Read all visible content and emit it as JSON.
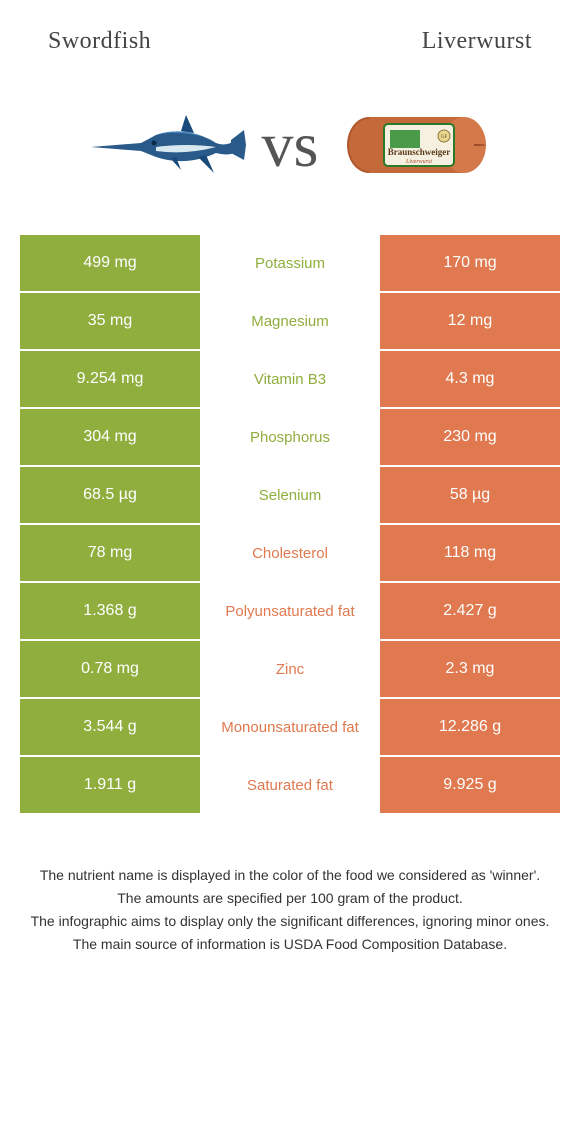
{
  "food_a": {
    "name": "Swordfish",
    "color": "#8fae3e"
  },
  "food_b": {
    "name": "Liverwurst",
    "color": "#e0794f"
  },
  "vs_label": "vs",
  "nutrients": [
    {
      "name": "Potassium",
      "a": "499 mg",
      "b": "170 mg",
      "winner": "a"
    },
    {
      "name": "Magnesium",
      "a": "35 mg",
      "b": "12 mg",
      "winner": "a"
    },
    {
      "name": "Vitamin B3",
      "a": "9.254 mg",
      "b": "4.3 mg",
      "winner": "a"
    },
    {
      "name": "Phosphorus",
      "a": "304 mg",
      "b": "230 mg",
      "winner": "a"
    },
    {
      "name": "Selenium",
      "a": "68.5 µg",
      "b": "58 µg",
      "winner": "a"
    },
    {
      "name": "Cholesterol",
      "a": "78 mg",
      "b": "118 mg",
      "winner": "b"
    },
    {
      "name": "Polyunsaturated fat",
      "a": "1.368 g",
      "b": "2.427 g",
      "winner": "b"
    },
    {
      "name": "Zinc",
      "a": "0.78 mg",
      "b": "2.3 mg",
      "winner": "b"
    },
    {
      "name": "Monounsaturated fat",
      "a": "3.544 g",
      "b": "12.286 g",
      "winner": "b"
    },
    {
      "name": "Saturated fat",
      "a": "1.911 g",
      "b": "9.925 g",
      "winner": "b"
    }
  ],
  "footnotes": [
    "The nutrient name is displayed in the color of the food we considered as 'winner'.",
    "The amounts are specified per 100 gram of the product.",
    "The infographic aims to display only the significant differences, ignoring minor ones.",
    "The main source of information is USDA Food Composition Database."
  ]
}
